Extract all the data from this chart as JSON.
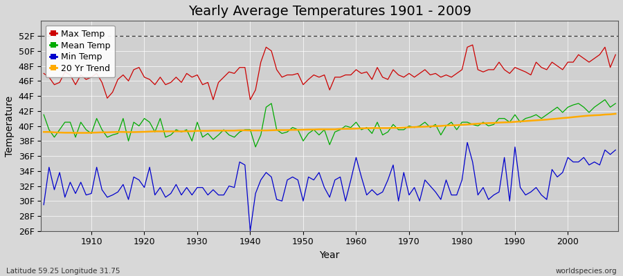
{
  "title": "Yearly Average Temperatures 1901 - 2009",
  "xlabel": "Year",
  "ylabel": "Temperature",
  "lat_lon_label": "Latitude 59.25 Longitude 31.75",
  "credit_label": "worldspecies.org",
  "years": [
    1901,
    1902,
    1903,
    1904,
    1905,
    1906,
    1907,
    1908,
    1909,
    1910,
    1911,
    1912,
    1913,
    1914,
    1915,
    1916,
    1917,
    1918,
    1919,
    1920,
    1921,
    1922,
    1923,
    1924,
    1925,
    1926,
    1927,
    1928,
    1929,
    1930,
    1931,
    1932,
    1933,
    1934,
    1935,
    1936,
    1937,
    1938,
    1939,
    1940,
    1941,
    1942,
    1943,
    1944,
    1945,
    1946,
    1947,
    1948,
    1949,
    1950,
    1951,
    1952,
    1953,
    1954,
    1955,
    1956,
    1957,
    1958,
    1959,
    1960,
    1961,
    1962,
    1963,
    1964,
    1965,
    1966,
    1967,
    1968,
    1969,
    1970,
    1971,
    1972,
    1973,
    1974,
    1975,
    1976,
    1977,
    1978,
    1979,
    1980,
    1981,
    1982,
    1983,
    1984,
    1985,
    1986,
    1987,
    1988,
    1989,
    1990,
    1991,
    1992,
    1993,
    1994,
    1995,
    1996,
    1997,
    1998,
    1999,
    2000,
    2001,
    2002,
    2003,
    2004,
    2005,
    2006,
    2007,
    2008,
    2009
  ],
  "max_temp": [
    47.0,
    46.5,
    45.5,
    45.8,
    47.2,
    46.8,
    45.5,
    46.8,
    46.2,
    46.5,
    47.0,
    45.8,
    43.7,
    44.5,
    46.2,
    46.8,
    46.0,
    47.5,
    47.8,
    46.5,
    46.2,
    45.5,
    46.5,
    45.5,
    45.8,
    46.5,
    45.8,
    47.0,
    46.5,
    46.8,
    45.5,
    45.8,
    43.5,
    45.8,
    46.5,
    47.2,
    47.0,
    47.8,
    47.8,
    43.5,
    44.8,
    48.5,
    50.5,
    50.0,
    47.5,
    46.5,
    46.8,
    46.8,
    47.0,
    45.5,
    46.2,
    46.8,
    46.5,
    46.8,
    44.8,
    46.5,
    46.5,
    46.8,
    46.8,
    47.5,
    47.0,
    47.2,
    46.2,
    47.8,
    46.5,
    46.2,
    47.5,
    46.8,
    46.5,
    47.0,
    46.5,
    47.0,
    47.5,
    46.8,
    47.0,
    46.5,
    46.8,
    46.5,
    47.0,
    47.5,
    50.5,
    50.8,
    47.5,
    47.2,
    47.5,
    47.5,
    48.5,
    47.5,
    47.0,
    47.8,
    47.5,
    47.2,
    46.8,
    48.5,
    47.8,
    47.5,
    48.5,
    48.0,
    47.5,
    48.5,
    48.5,
    49.5,
    49.0,
    48.5,
    49.0,
    49.5,
    50.5,
    47.8,
    49.5
  ],
  "mean_temp": [
    41.5,
    39.5,
    38.5,
    39.5,
    40.5,
    40.5,
    38.5,
    40.5,
    39.5,
    39.0,
    41.0,
    39.5,
    38.5,
    38.8,
    39.0,
    41.0,
    38.0,
    40.5,
    40.0,
    41.0,
    40.5,
    39.2,
    41.0,
    38.5,
    38.8,
    39.5,
    39.2,
    39.5,
    38.0,
    40.5,
    38.5,
    39.0,
    38.2,
    38.8,
    39.5,
    38.8,
    38.5,
    39.2,
    39.5,
    39.5,
    37.2,
    38.8,
    42.5,
    43.0,
    39.5,
    39.0,
    39.2,
    39.8,
    39.5,
    38.0,
    39.0,
    39.5,
    38.8,
    39.5,
    37.5,
    39.2,
    39.5,
    40.0,
    39.8,
    40.5,
    39.5,
    39.8,
    39.0,
    40.5,
    38.8,
    39.2,
    40.2,
    39.5,
    39.5,
    40.0,
    39.8,
    40.0,
    40.5,
    39.8,
    40.2,
    38.8,
    40.0,
    40.5,
    39.5,
    40.5,
    40.5,
    40.2,
    40.0,
    40.5,
    40.0,
    40.2,
    41.0,
    41.0,
    40.5,
    41.5,
    40.5,
    41.0,
    41.2,
    41.5,
    41.0,
    41.5,
    42.0,
    42.5,
    41.8,
    42.5,
    42.8,
    43.0,
    42.5,
    41.8,
    42.5,
    43.0,
    43.5,
    42.5,
    43.0
  ],
  "min_temp": [
    29.5,
    34.5,
    31.5,
    33.8,
    30.5,
    32.5,
    31.0,
    32.5,
    30.8,
    31.0,
    34.5,
    31.5,
    30.5,
    30.8,
    31.2,
    32.2,
    30.2,
    33.2,
    32.8,
    31.8,
    34.5,
    30.8,
    31.8,
    30.5,
    31.0,
    32.2,
    30.8,
    31.8,
    30.8,
    31.8,
    31.8,
    30.8,
    31.5,
    30.8,
    30.8,
    32.0,
    31.8,
    35.2,
    34.8,
    26.0,
    31.0,
    32.8,
    33.8,
    33.2,
    30.2,
    30.0,
    32.8,
    33.2,
    32.8,
    30.0,
    33.2,
    32.8,
    33.8,
    31.8,
    30.5,
    32.8,
    33.2,
    30.0,
    32.8,
    35.8,
    33.2,
    30.8,
    31.5,
    30.8,
    31.2,
    32.8,
    34.8,
    30.0,
    33.8,
    30.8,
    31.8,
    30.0,
    32.8,
    32.0,
    31.2,
    30.2,
    32.8,
    30.8,
    30.8,
    32.8,
    37.8,
    35.2,
    30.8,
    31.8,
    30.2,
    30.8,
    31.2,
    35.8,
    30.0,
    37.2,
    31.8,
    30.8,
    31.2,
    31.8,
    30.8,
    30.2,
    34.2,
    33.2,
    33.8,
    35.8,
    35.2,
    35.2,
    35.8,
    34.8,
    35.2,
    34.8,
    36.8,
    36.2,
    36.8
  ],
  "trend": [
    39.2,
    39.2,
    39.15,
    39.12,
    39.1,
    39.1,
    39.08,
    39.08,
    39.08,
    39.1,
    39.12,
    39.15,
    39.15,
    39.18,
    39.2,
    39.2,
    39.18,
    39.18,
    39.2,
    39.22,
    39.25,
    39.28,
    39.28,
    39.28,
    39.28,
    39.28,
    39.28,
    39.3,
    39.3,
    39.35,
    39.35,
    39.35,
    39.38,
    39.38,
    39.38,
    39.38,
    39.38,
    39.42,
    39.42,
    39.4,
    39.4,
    39.4,
    39.4,
    39.42,
    39.45,
    39.45,
    39.45,
    39.48,
    39.48,
    39.5,
    39.52,
    39.52,
    39.55,
    39.55,
    39.55,
    39.55,
    39.6,
    39.62,
    39.62,
    39.65,
    39.68,
    39.7,
    39.72,
    39.72,
    39.72,
    39.72,
    39.75,
    39.75,
    39.78,
    39.82,
    39.85,
    39.88,
    39.9,
    39.95,
    39.98,
    40.0,
    40.05,
    40.08,
    40.1,
    40.15,
    40.2,
    40.25,
    40.3,
    40.35,
    40.38,
    40.4,
    40.45,
    40.48,
    40.5,
    40.55,
    40.6,
    40.65,
    40.7,
    40.75,
    40.8,
    40.85,
    40.92,
    40.98,
    41.05,
    41.1,
    41.18,
    41.25,
    41.32,
    41.38,
    41.42,
    41.45,
    41.52,
    41.55,
    41.62
  ],
  "max_color": "#cc0000",
  "mean_color": "#00aa00",
  "min_color": "#0000cc",
  "trend_color": "#ffaa00",
  "fig_bg_color": "#d8d8d8",
  "plot_bg_color": "#d0d0d0",
  "grid_color": "#ffffff",
  "ylim_min": 26,
  "ylim_max": 54,
  "yticks": [
    26,
    28,
    30,
    32,
    34,
    36,
    38,
    40,
    42,
    44,
    46,
    48,
    50,
    52
  ],
  "ytick_labels": [
    "26F",
    "28F",
    "30F",
    "32F",
    "34F",
    "36F",
    "38F",
    "40F",
    "42F",
    "44F",
    "46F",
    "48F",
    "50F",
    "52F"
  ],
  "xticks": [
    1910,
    1920,
    1930,
    1940,
    1950,
    1960,
    1970,
    1980,
    1990,
    2000
  ],
  "dashed_line_y": 52,
  "title_fontsize": 14,
  "axis_label_fontsize": 10,
  "tick_fontsize": 9,
  "legend_fontsize": 9
}
